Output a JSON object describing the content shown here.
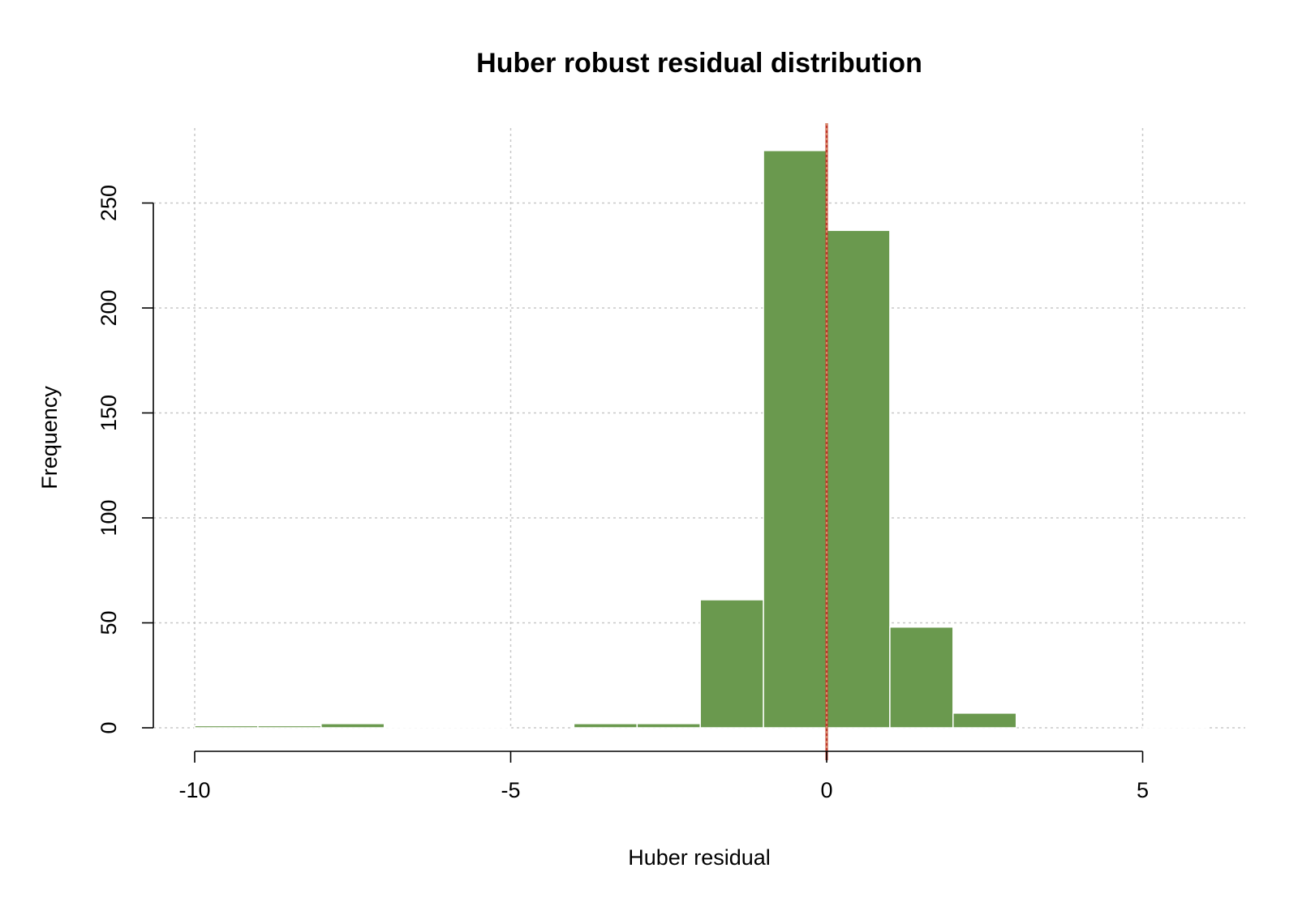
{
  "chart_data": {
    "type": "bar",
    "title": "Huber robust residual distribution",
    "xlabel": "Huber residual",
    "ylabel": "Frequency",
    "xlim": [
      -10,
      6
    ],
    "ylim": [
      0,
      275
    ],
    "x_ticks": [
      -10,
      -5,
      0,
      5
    ],
    "x_tick_labels": [
      "-10",
      "-5",
      "0",
      "5"
    ],
    "y_ticks": [
      0,
      50,
      100,
      150,
      200,
      250
    ],
    "y_tick_labels": [
      "0",
      "50",
      "100",
      "150",
      "200",
      "250"
    ],
    "grid": true,
    "bin_width": 1,
    "bin_left_edges": [
      -10,
      -9,
      -8,
      -7,
      -6,
      -5,
      -4,
      -3,
      -2,
      -1,
      0,
      1,
      2,
      3,
      4,
      5
    ],
    "values": [
      1,
      1,
      2,
      0.5,
      0.5,
      0,
      2,
      2,
      61,
      275,
      237,
      48,
      7,
      0,
      0,
      0.5
    ],
    "reference_line_x": 0,
    "colors": {
      "bar": "#6a994e",
      "bar_border": "#ffffff",
      "reference_line": "#c0392b",
      "grid": "#c8c8c8"
    }
  }
}
